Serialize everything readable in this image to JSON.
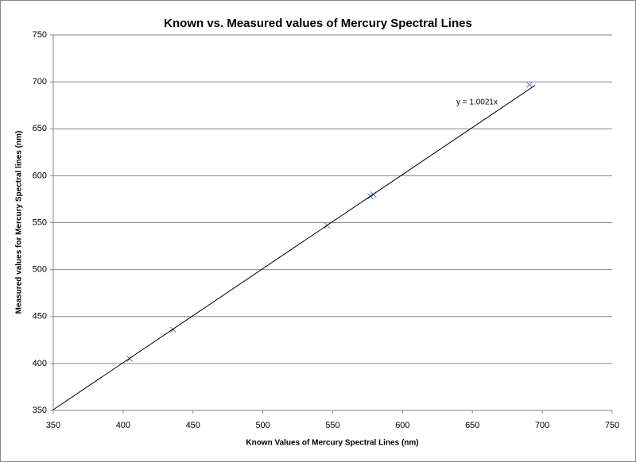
{
  "chart_data": {
    "type": "scatter",
    "title": "Known vs. Measured values of Mercury Spectral Lines",
    "x_label": "Known Values of Mercury Spectral Lines (nm)",
    "y_label": "Measured values for Mercury Spectral lines (nm)",
    "series": [
      {
        "color": "#4a7ebb",
        "x": [
          404.7,
          435.8,
          546.1,
          577.0,
          579.1,
          690.7
        ],
        "values": [
          405,
          436,
          547,
          578,
          580,
          697
        ]
      }
    ],
    "trendline": {
      "slope": 1.0021,
      "label": "y = 1.0021x",
      "color": "#000000"
    },
    "xlim": [
      350,
      750
    ],
    "xticks": [
      350,
      400,
      450,
      500,
      550,
      600,
      650,
      700,
      750
    ],
    "ylim": [
      350,
      750
    ],
    "yticks": [
      350,
      400,
      450,
      500,
      550,
      600,
      650,
      700,
      750
    ],
    "grid": true
  }
}
